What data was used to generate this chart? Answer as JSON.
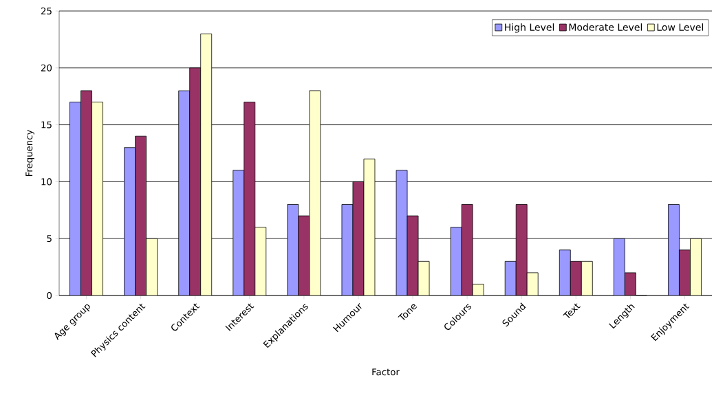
{
  "chart_data": {
    "type": "bar",
    "xlabel": "Factor",
    "ylabel": "Frequency",
    "categories": [
      "Age group",
      "Physics content",
      "Context",
      "Interest",
      "Explanations",
      "Humour",
      "Tone",
      "Colours",
      "Sound",
      "Text",
      "Length",
      "Enjoyment"
    ],
    "series": [
      {
        "name": "High Level",
        "color": "#9999ff",
        "values": [
          17,
          13,
          18,
          11,
          8,
          8,
          11,
          6,
          3,
          4,
          5,
          8
        ]
      },
      {
        "name": "Moderate Level",
        "color": "#993366",
        "values": [
          18,
          14,
          20,
          17,
          7,
          10,
          7,
          8,
          8,
          3,
          2,
          4
        ]
      },
      {
        "name": "Low Level",
        "color": "#ffffcc",
        "values": [
          17,
          5,
          23,
          6,
          18,
          12,
          3,
          1,
          2,
          3,
          0,
          5
        ]
      }
    ],
    "ylim": [
      0,
      25
    ],
    "yticks": [
      0,
      5,
      10,
      15,
      20,
      25
    ],
    "grid": "y",
    "legend": "top right"
  }
}
